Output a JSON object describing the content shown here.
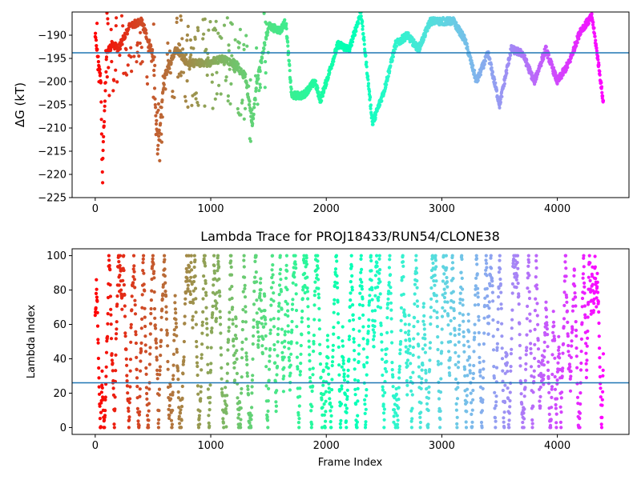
{
  "chart_data": [
    {
      "type": "scatter",
      "title": "",
      "xlabel": "",
      "ylabel": "ΔG (kT)",
      "xlim": [
        -200,
        4620
      ],
      "ylim": [
        -225,
        -185
      ],
      "xticks": [
        0,
        1000,
        2000,
        3000,
        4000
      ],
      "xtick_labels": [
        "0",
        "1000",
        "2000",
        "3000",
        "4000"
      ],
      "yticks": [
        -225,
        -220,
        -215,
        -210,
        -205,
        -200,
        -195,
        -190
      ],
      "ytick_labels": [
        "−225",
        "−220",
        "−215",
        "−210",
        "−205",
        "−200",
        "−195",
        "−190"
      ],
      "hline": {
        "y": -193.8,
        "color": "#1f77b4"
      },
      "colormap": "rainbow (reversed: red at frame 0, violet at last frame)",
      "grid": false,
      "point_count": 4400,
      "series": [
        {
          "values_at_frames": [
            [
              0,
              -190
            ],
            [
              50,
              -200
            ],
            [
              60,
              -220
            ],
            [
              80,
              -207
            ],
            [
              100,
              -194
            ],
            [
              150,
              -192
            ],
            [
              200,
              -193
            ],
            [
              300,
              -188
            ],
            [
              400,
              -187
            ],
            [
              500,
              -194
            ],
            [
              540,
              -215
            ],
            [
              600,
              -199
            ],
            [
              700,
              -193
            ],
            [
              800,
              -196
            ],
            [
              900,
              -196
            ],
            [
              1000,
              -196
            ],
            [
              1100,
              -195
            ],
            [
              1200,
              -196
            ],
            [
              1300,
              -199
            ],
            [
              1360,
              -209
            ],
            [
              1400,
              -200
            ],
            [
              1500,
              -188
            ],
            [
              1600,
              -189
            ],
            [
              1650,
              -187
            ],
            [
              1700,
              -203
            ],
            [
              1800,
              -203
            ],
            [
              1900,
              -200
            ],
            [
              1950,
              -204
            ],
            [
              2000,
              -200
            ],
            [
              2100,
              -192
            ],
            [
              2200,
              -193
            ],
            [
              2300,
              -185
            ],
            [
              2400,
              -209
            ],
            [
              2500,
              -202
            ],
            [
              2600,
              -192
            ],
            [
              2700,
              -190
            ],
            [
              2800,
              -193
            ],
            [
              2900,
              -187
            ],
            [
              3000,
              -187
            ],
            [
              3100,
              -187
            ],
            [
              3200,
              -191
            ],
            [
              3300,
              -200
            ],
            [
              3400,
              -194
            ],
            [
              3500,
              -205
            ],
            [
              3600,
              -193
            ],
            [
              3700,
              -194
            ],
            [
              3800,
              -200
            ],
            [
              3900,
              -193
            ],
            [
              4000,
              -200
            ],
            [
              4100,
              -196
            ],
            [
              4200,
              -189
            ],
            [
              4300,
              -186
            ],
            [
              4350,
              -195
            ],
            [
              4400,
              -205
            ]
          ]
        }
      ]
    },
    {
      "type": "scatter",
      "title": "Lambda Trace for PROJ18433/RUN54/CLONE38",
      "xlabel": "Frame Index",
      "ylabel": "Lambda Index",
      "xlim": [
        -200,
        4620
      ],
      "ylim": [
        -4,
        104
      ],
      "xticks": [
        0,
        1000,
        2000,
        3000,
        4000
      ],
      "xtick_labels": [
        "0",
        "1000",
        "2000",
        "3000",
        "4000"
      ],
      "yticks": [
        0,
        20,
        40,
        60,
        80,
        100
      ],
      "ytick_labels": [
        "0",
        "20",
        "40",
        "60",
        "80",
        "100"
      ],
      "hline": {
        "y": 26,
        "color": "#1f77b4"
      },
      "colormap": "rainbow (reversed: red at frame 0, violet at last frame)",
      "grid": false,
      "point_count": 4400,
      "y_range_of_points": [
        0,
        100
      ]
    }
  ]
}
